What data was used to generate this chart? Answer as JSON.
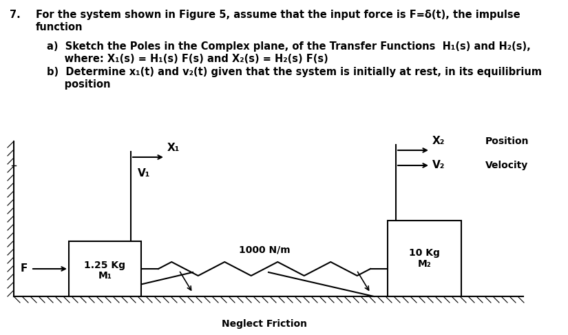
{
  "bg_color": "#ffffff",
  "fig_width": 8.25,
  "fig_height": 4.86,
  "dpi": 100,
  "title_number": "7.",
  "line1": "For the system shown in Figure 5, assume that the input force is F=δ(t), the impulse",
  "line2": "function",
  "item_a1": "a)  Sketch the Poles in the Complex plane, of the Transfer Functions  H₁(s) and H₂(s),",
  "item_a2": "     where: X₁(s) = H₁(s) F(s) and X₂(s) = H₂(s) F(s)",
  "item_b1": "b)  Determine x₁(t) and v₂(t) given that the system is initially at rest, in its equilibrium",
  "item_b2": "     position",
  "mass1_line1": "1.25 Kg",
  "mass1_line2": "M₁",
  "mass2_line1": "10 Kg",
  "mass2_line2": "M₂",
  "spring_label": "1000 N/m",
  "friction_label": "Neglect Friction",
  "x1_label": "X₁",
  "v1_label": "V₁",
  "x2_label": "X₂",
  "v2_label": "V₂",
  "position_label": "Position",
  "velocity_label": "Velocity",
  "force_label": "F",
  "font_size_text": 10.5,
  "font_size_diagram": 10.0,
  "font_bold": "bold"
}
